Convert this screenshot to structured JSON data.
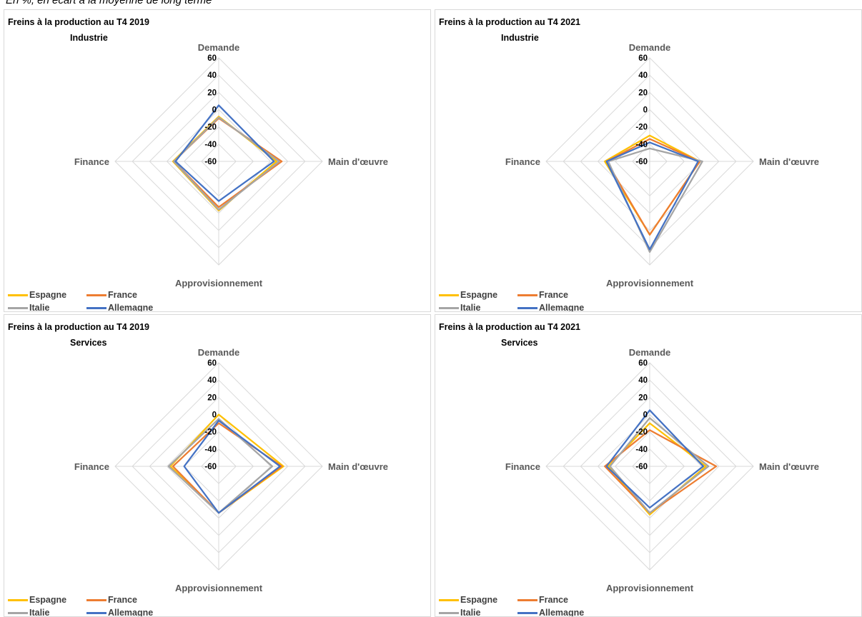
{
  "subtitle": "En %, en écart à la moyenne de long terme",
  "colors": {
    "Espagne": "#FFC000",
    "France": "#ED7D31",
    "Italie": "#A5A5A5",
    "Allemagne": "#4472C4",
    "grid": "#d9d9d9"
  },
  "chart_data": [
    {
      "type": "radar",
      "title": "Freins à la production au T4 2019",
      "sector": "Industrie",
      "axes": [
        "Demande",
        "Main d'œuvre",
        "Approvisionnement",
        "Finance"
      ],
      "ticks": [
        -60,
        -40,
        -20,
        0,
        20,
        40,
        60
      ],
      "rlim": [
        -60,
        60
      ],
      "legend_position": "bottom-left",
      "series": [
        {
          "name": "Espagne",
          "values": [
            -8,
            7,
            -3,
            -7
          ]
        },
        {
          "name": "France",
          "values": [
            -10,
            13,
            -7,
            -8
          ]
        },
        {
          "name": "Italie",
          "values": [
            -9,
            10,
            -4,
            -8
          ]
        },
        {
          "name": "Allemagne",
          "values": [
            5,
            4,
            -14,
            -10
          ]
        }
      ]
    },
    {
      "type": "radar",
      "title": "Freins à la production au T4 2021",
      "sector": "Industrie",
      "axes": [
        "Demande",
        "Main d'œuvre",
        "Approvisionnement",
        "Finance"
      ],
      "ticks": [
        -60,
        -40,
        -20,
        0,
        20,
        40,
        60
      ],
      "rlim": [
        -60,
        60
      ],
      "legend_position": "bottom-left",
      "series": [
        {
          "name": "Espagne",
          "values": [
            -30,
            -2,
            25,
            -8
          ]
        },
        {
          "name": "France",
          "values": [
            -34,
            -2,
            25,
            -10
          ]
        },
        {
          "name": "Italie",
          "values": [
            -45,
            1,
            45,
            -12
          ]
        },
        {
          "name": "Allemagne",
          "values": [
            -38,
            -4,
            42,
            -10
          ]
        }
      ]
    },
    {
      "type": "radar",
      "title": "Freins à la production au T4 2019",
      "sector": "Services",
      "axes": [
        "Demande",
        "Main d'œuvre",
        "Approvisionnement",
        "Finance"
      ],
      "ticks": [
        -60,
        -40,
        -20,
        0,
        20,
        40,
        60
      ],
      "rlim": [
        -60,
        60
      ],
      "legend_position": "bottom-left",
      "series": [
        {
          "name": "Espagne",
          "values": [
            0,
            15,
            -6,
            -4
          ]
        },
        {
          "name": "France",
          "values": [
            -10,
            13,
            -6,
            -7
          ]
        },
        {
          "name": "Italie",
          "values": [
            -5,
            2,
            -6,
            -2
          ]
        },
        {
          "name": "Allemagne",
          "values": [
            -7,
            11,
            -6,
            -20
          ]
        }
      ]
    },
    {
      "type": "radar",
      "title": "Freins à la production au T4 2021",
      "sector": "Services",
      "axes": [
        "Demande",
        "Main d'œuvre",
        "Approvisionnement",
        "Finance"
      ],
      "ticks": [
        -60,
        -40,
        -20,
        0,
        20,
        40,
        60
      ],
      "rlim": [
        -60,
        60
      ],
      "legend_position": "bottom-left",
      "series": [
        {
          "name": "Espagne",
          "values": [
            -10,
            5,
            -4,
            -12
          ]
        },
        {
          "name": "France",
          "values": [
            -18,
            17,
            -6,
            -8
          ]
        },
        {
          "name": "Italie",
          "values": [
            -4,
            8,
            -6,
            -14
          ]
        },
        {
          "name": "Allemagne",
          "values": [
            5,
            2,
            -12,
            -10
          ]
        }
      ]
    }
  ]
}
